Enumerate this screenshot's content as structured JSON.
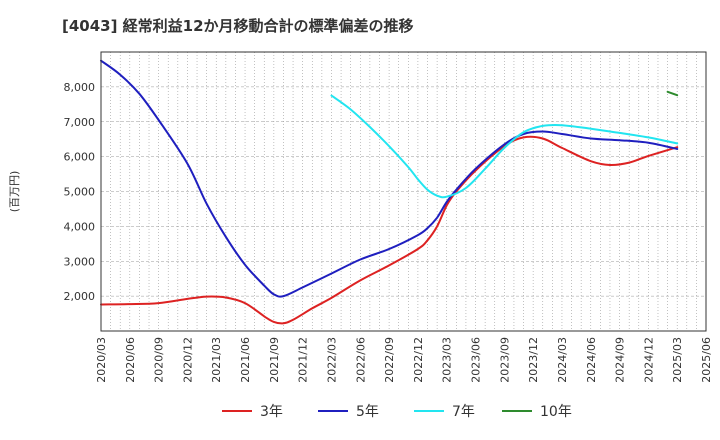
{
  "chart_data": {
    "type": "line",
    "title": "[4043]  経常利益12か月移動合計の標準偏差の推移",
    "ylabel": "(百万円)",
    "xlabel": "",
    "ylim": [
      1000,
      9000
    ],
    "yticks": [
      2000,
      3000,
      4000,
      5000,
      6000,
      7000,
      8000
    ],
    "ytick_labels": [
      "2,000",
      "3,000",
      "4,000",
      "5,000",
      "6,000",
      "7,000",
      "8,000"
    ],
    "x_ticks": [
      "2020/03",
      "2020/06",
      "2020/09",
      "2020/12",
      "2021/03",
      "2021/06",
      "2021/09",
      "2021/12",
      "2022/03",
      "2022/06",
      "2022/09",
      "2022/12",
      "2023/03",
      "2023/06",
      "2023/09",
      "2023/12",
      "2024/03",
      "2024/06",
      "2024/09",
      "2024/12",
      "2025/03",
      "2025/06"
    ],
    "grid": true,
    "legend_position": "bottom",
    "series": [
      {
        "name": "3年",
        "color": "#dd2222",
        "points": [
          [
            "2020/03",
            1760
          ],
          [
            "2020/06",
            1770
          ],
          [
            "2020/09",
            1800
          ],
          [
            "2020/12",
            1920
          ],
          [
            "2021/02",
            1985
          ],
          [
            "2021/04",
            1960
          ],
          [
            "2021/06",
            1800
          ],
          [
            "2021/08",
            1420
          ],
          [
            "2021/09",
            1260
          ],
          [
            "2021/10",
            1220
          ],
          [
            "2021/11",
            1320
          ],
          [
            "2022/01",
            1650
          ],
          [
            "2022/03",
            1950
          ],
          [
            "2022/06",
            2450
          ],
          [
            "2022/09",
            2880
          ],
          [
            "2022/12",
            3350
          ],
          [
            "2023/01",
            3600
          ],
          [
            "2023/02",
            4000
          ],
          [
            "2023/03",
            4600
          ],
          [
            "2023/04",
            5000
          ],
          [
            "2023/06",
            5600
          ],
          [
            "2023/09",
            6300
          ],
          [
            "2023/11",
            6550
          ],
          [
            "2024/01",
            6520
          ],
          [
            "2024/03",
            6250
          ],
          [
            "2024/06",
            5870
          ],
          [
            "2024/08",
            5760
          ],
          [
            "2024/10",
            5830
          ],
          [
            "2024/12",
            6020
          ],
          [
            "2025/03",
            6270
          ]
        ]
      },
      {
        "name": "5年",
        "color": "#1f1fbf",
        "points": [
          [
            "2020/03",
            8750
          ],
          [
            "2020/05",
            8350
          ],
          [
            "2020/07",
            7800
          ],
          [
            "2020/09",
            7050
          ],
          [
            "2020/12",
            5800
          ],
          [
            "2021/02",
            4650
          ],
          [
            "2021/04",
            3700
          ],
          [
            "2021/06",
            2900
          ],
          [
            "2021/08",
            2300
          ],
          [
            "2021/09",
            2050
          ],
          [
            "2021/10",
            2000
          ],
          [
            "2021/12",
            2250
          ],
          [
            "2022/03",
            2650
          ],
          [
            "2022/06",
            3050
          ],
          [
            "2022/09",
            3350
          ],
          [
            "2022/12",
            3750
          ],
          [
            "2023/01",
            3950
          ],
          [
            "2023/02",
            4250
          ],
          [
            "2023/03",
            4700
          ],
          [
            "2023/04",
            5050
          ],
          [
            "2023/06",
            5650
          ],
          [
            "2023/09",
            6350
          ],
          [
            "2023/11",
            6650
          ],
          [
            "2024/01",
            6720
          ],
          [
            "2024/03",
            6650
          ],
          [
            "2024/06",
            6520
          ],
          [
            "2024/09",
            6470
          ],
          [
            "2024/12",
            6400
          ],
          [
            "2025/03",
            6220
          ]
        ]
      },
      {
        "name": "7年",
        "color": "#22e5f0",
        "points": [
          [
            "2022/03",
            7750
          ],
          [
            "2022/05",
            7350
          ],
          [
            "2022/07",
            6850
          ],
          [
            "2022/09",
            6300
          ],
          [
            "2022/11",
            5700
          ],
          [
            "2022/12",
            5350
          ],
          [
            "2023/01",
            5050
          ],
          [
            "2023/02",
            4880
          ],
          [
            "2023/03",
            4850
          ],
          [
            "2023/05",
            5100
          ],
          [
            "2023/07",
            5650
          ],
          [
            "2023/09",
            6250
          ],
          [
            "2023/11",
            6700
          ],
          [
            "2024/01",
            6880
          ],
          [
            "2024/03",
            6900
          ],
          [
            "2024/06",
            6800
          ],
          [
            "2024/09",
            6680
          ],
          [
            "2024/12",
            6550
          ],
          [
            "2025/03",
            6380
          ]
        ]
      },
      {
        "name": "10年",
        "color": "#2e8b2e",
        "points": [
          [
            "2025/02",
            7860
          ],
          [
            "2025/03",
            7760
          ]
        ]
      }
    ]
  }
}
